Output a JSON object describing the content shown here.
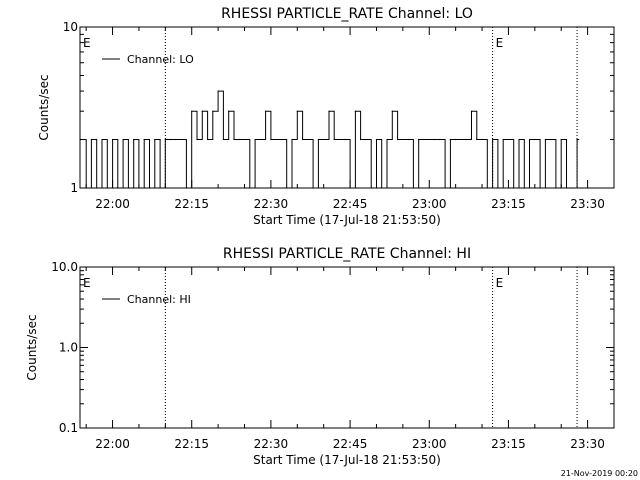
{
  "footer_timestamp": "21-Nov-2019 00:20",
  "chart_data": [
    {
      "type": "line",
      "title": "RHESSI PARTICLE_RATE Channel: LO",
      "xlabel": "Start Time (17-Jul-18 21:53:50)",
      "ylabel": "Counts/sec",
      "y_scale": "log",
      "ylim": [
        1,
        10
      ],
      "y_ticks": [
        "1",
        "10"
      ],
      "xlim": [
        "21:53:50",
        "23:35"
      ],
      "x_ticks": [
        "22:00",
        "22:15",
        "22:30",
        "22:45",
        "23:00",
        "23:15",
        "23:30"
      ],
      "grid": false,
      "legend": {
        "position": "top-left",
        "entries": [
          "Channel: LO"
        ]
      },
      "vertical_markers": [
        {
          "time": "21:53:50",
          "label": "E"
        },
        {
          "time": "22:10",
          "label": ""
        },
        {
          "time": "23:12",
          "label": "E"
        },
        {
          "time": "23:28",
          "label": ""
        }
      ],
      "series": [
        {
          "name": "Channel: LO",
          "x": [
            "21:54",
            "21:55",
            "21:56",
            "21:57",
            "21:58",
            "21:59",
            "22:00",
            "22:01",
            "22:02",
            "22:03",
            "22:04",
            "22:05",
            "22:06",
            "22:07",
            "22:08",
            "22:09",
            "22:10",
            "22:11",
            "22:12",
            "22:13",
            "22:14",
            "22:15",
            "22:16",
            "22:17",
            "22:18",
            "22:19",
            "22:20",
            "22:21",
            "22:22",
            "22:23",
            "22:24",
            "22:25",
            "22:26",
            "22:27",
            "22:28",
            "22:29",
            "22:30",
            "22:31",
            "22:32",
            "22:33",
            "22:34",
            "22:35",
            "22:36",
            "22:37",
            "22:38",
            "22:39",
            "22:40",
            "22:41",
            "22:42",
            "22:43",
            "22:44",
            "22:45",
            "22:46",
            "22:47",
            "22:48",
            "22:49",
            "22:50",
            "22:51",
            "22:52",
            "22:53",
            "22:54",
            "22:55",
            "22:56",
            "22:57",
            "22:58",
            "22:59",
            "23:00",
            "23:01",
            "23:02",
            "23:03",
            "23:04",
            "23:05",
            "23:06",
            "23:07",
            "23:08",
            "23:09",
            "23:10",
            "23:11",
            "23:12",
            "23:13",
            "23:14",
            "23:15",
            "23:16",
            "23:17",
            "23:18",
            "23:19",
            "23:20",
            "23:21",
            "23:22",
            "23:23",
            "23:24",
            "23:25",
            "23:26",
            "23:27",
            "23:28"
          ],
          "values": [
            2,
            1,
            2,
            1,
            2,
            1,
            2,
            1,
            2,
            1,
            2,
            1,
            2,
            1,
            2,
            1,
            2,
            2,
            2,
            2,
            1,
            3,
            2,
            3,
            2,
            3,
            4,
            2,
            3,
            2,
            2,
            2,
            1,
            2,
            2,
            3,
            2,
            2,
            2,
            1,
            2,
            3,
            2,
            2,
            1,
            2,
            2,
            3,
            2,
            2,
            2,
            1,
            3,
            2,
            2,
            1,
            2,
            1,
            2,
            3,
            2,
            2,
            2,
            1,
            2,
            2,
            2,
            2,
            2,
            1,
            2,
            2,
            2,
            2,
            3,
            2,
            2,
            1,
            2,
            1,
            2,
            2,
            1,
            2,
            1,
            2,
            2,
            1,
            2,
            2,
            1,
            2,
            1,
            1,
            2
          ]
        }
      ]
    },
    {
      "type": "line",
      "title": "RHESSI PARTICLE_RATE Channel: HI",
      "xlabel": "Start Time (17-Jul-18 21:53:50)",
      "ylabel": "Counts/sec",
      "y_scale": "log",
      "ylim": [
        0.1,
        10
      ],
      "y_ticks": [
        "0.1",
        "1.0",
        "10.0"
      ],
      "xlim": [
        "21:53:50",
        "23:35"
      ],
      "x_ticks": [
        "22:00",
        "22:15",
        "22:30",
        "22:45",
        "23:00",
        "23:15",
        "23:30"
      ],
      "grid": false,
      "legend": {
        "position": "top-left",
        "entries": [
          "Channel: HI"
        ]
      },
      "vertical_markers": [
        {
          "time": "21:53:50",
          "label": "E"
        },
        {
          "time": "22:10",
          "label": ""
        },
        {
          "time": "23:12",
          "label": "E"
        },
        {
          "time": "23:28",
          "label": ""
        }
      ],
      "series": [
        {
          "name": "Channel: HI",
          "x": [],
          "values": []
        }
      ]
    }
  ]
}
